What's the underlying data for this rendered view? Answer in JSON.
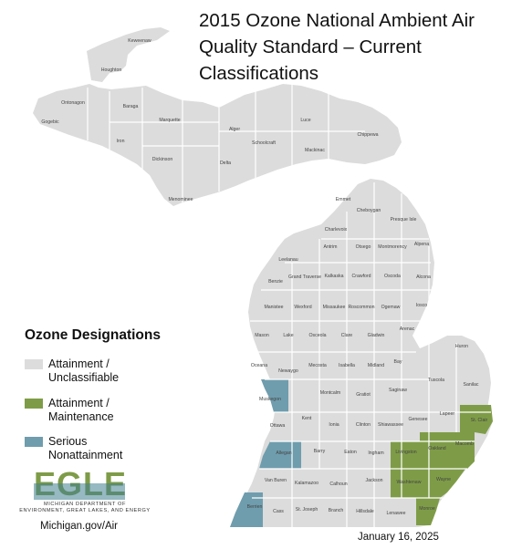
{
  "title": {
    "line1": "2015 Ozone National Ambient Air",
    "line2": "Quality Standard – Current",
    "line3": "Classifications"
  },
  "legend": {
    "title": "Ozone Designations",
    "items": [
      {
        "line1": "Attainment /",
        "line2": "Unclassifiable",
        "color": "#dcdcdc"
      },
      {
        "line1": "Attainment /",
        "line2": "Maintenance",
        "color": "#7e9c47"
      },
      {
        "line1": "Serious",
        "line2": "Nonattainment",
        "color": "#6f9dad"
      }
    ]
  },
  "logo": {
    "text": "EGLE",
    "agency_line1": "MICHIGAN DEPARTMENT OF",
    "agency_line2": "ENVIRONMENT, GREAT LAKES, AND ENERGY"
  },
  "website": "Michigan.gov/Air",
  "date": "January 16, 2025",
  "colors": {
    "attainment_unclassifiable": "#dcdcdc",
    "attainment_maintenance": "#7e9c47",
    "serious_nonattainment": "#6f9dad",
    "county_border": "#ffffff",
    "logo_green": "#7e9c47",
    "logo_teal": "#3f7f8f"
  },
  "counties": {
    "keweenaw": "Keweenaw",
    "houghton": "Houghton",
    "ontonagon": "Ontonagon",
    "gogebic": "Gogebic",
    "baraga": "Baraga",
    "iron": "Iron",
    "marquette": "Marquette",
    "dickinson": "Dickinson",
    "menominee": "Menominee",
    "delta": "Delta",
    "alger": "Alger",
    "schoolcraft": "Schoolcraft",
    "luce": "Luce",
    "mackinac": "Mackinac",
    "chippewa": "Chippewa",
    "emmet": "Emmet",
    "cheboygan": "Cheboygan",
    "presque_isle": "Presque Isle",
    "charlevoix": "Charlevoix",
    "antrim": "Antrim",
    "otsego": "Otsego",
    "montmorency": "Montmorency",
    "alpena": "Alpena",
    "leelanau": "Leelanau",
    "grand_traverse": "Grand Traverse",
    "kalkaska": "Kalkaska",
    "crawford": "Crawford",
    "oscoda": "Oscoda",
    "alcona": "Alcona",
    "benzie": "Benzie",
    "manistee": "Manistee",
    "wexford": "Wexford",
    "missaukee": "Missaukee",
    "roscommon": "Roscommon",
    "ogemaw": "Ogemaw",
    "iosco": "Iosco",
    "arenac": "Arenac",
    "mason": "Mason",
    "lake": "Lake",
    "osceola": "Osceola",
    "clare": "Clare",
    "gladwin": "Gladwin",
    "bay": "Bay",
    "huron": "Huron",
    "oceana": "Oceana",
    "newaygo": "Newaygo",
    "mecosta": "Mecosta",
    "isabella": "Isabella",
    "midland": "Midland",
    "tuscola": "Tuscola",
    "sanilac": "Sanilac",
    "muskegon": "Muskegon",
    "montcalm": "Montcalm",
    "gratiot": "Gratiot",
    "saginaw": "Saginaw",
    "ottawa": "Ottawa",
    "kent": "Kent",
    "ionia": "Ionia",
    "clinton": "Clinton",
    "shiawassee": "Shiawassee",
    "genesee": "Genesee",
    "lapeer": "Lapeer",
    "st_clair": "St. Clair",
    "allegan": "Allegan",
    "barry": "Barry",
    "eaton": "Eaton",
    "ingham": "Ingham",
    "livingston": "Livingston",
    "oakland": "Oakland",
    "macomb": "Macomb",
    "van_buren": "Van Buren",
    "kalamazoo": "Kalamazoo",
    "calhoun": "Calhoun",
    "jackson": "Jackson",
    "washtenaw": "Washtenaw",
    "wayne": "Wayne",
    "berrien": "Berrien",
    "cass": "Cass",
    "st_joseph": "St. Joseph",
    "branch": "Branch",
    "hillsdale": "Hillsdale",
    "lenawee": "Lenawee",
    "monroe": "Monroe"
  }
}
